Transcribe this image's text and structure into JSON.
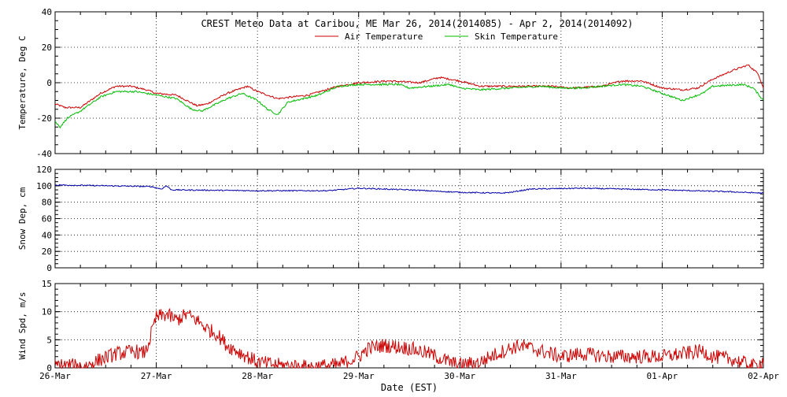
{
  "title": "CREST Meteo Data at Caribou, ME   Mar 26, 2014(2014085) - Apr  2, 2014(2014092)",
  "xlabel": "Date (EST)",
  "x_ticks": [
    "26-Mar",
    "27-Mar",
    "28-Mar",
    "29-Mar",
    "30-Mar",
    "31-Mar",
    "01-Apr",
    "02-Apr"
  ],
  "chart_data": [
    {
      "type": "line",
      "ylabel": "Temperature, Deg C",
      "ylim": [
        -40,
        40
      ],
      "yticks": [
        -40,
        -20,
        0,
        20,
        40
      ],
      "grid": true,
      "legend": "top-center",
      "series": [
        {
          "name": "Air Temperature",
          "color": "#cc0000",
          "points": [
            [
              0,
              -12
            ],
            [
              0.1,
              -14
            ],
            [
              0.25,
              -14
            ],
            [
              0.45,
              -6
            ],
            [
              0.6,
              -2
            ],
            [
              0.75,
              -2
            ],
            [
              0.9,
              -4
            ],
            [
              1.0,
              -6
            ],
            [
              1.2,
              -7
            ],
            [
              1.4,
              -13
            ],
            [
              1.5,
              -12
            ],
            [
              1.7,
              -6
            ],
            [
              1.9,
              -2
            ],
            [
              2.0,
              -5
            ],
            [
              2.2,
              -9
            ],
            [
              2.5,
              -7
            ],
            [
              2.8,
              -2
            ],
            [
              3.0,
              0
            ],
            [
              3.3,
              1
            ],
            [
              3.6,
              0
            ],
            [
              3.8,
              3
            ],
            [
              4.0,
              1
            ],
            [
              4.2,
              -2
            ],
            [
              4.6,
              -2
            ],
            [
              4.9,
              -2
            ],
            [
              5.1,
              -3
            ],
            [
              5.4,
              -2
            ],
            [
              5.6,
              1
            ],
            [
              5.8,
              1
            ],
            [
              6.0,
              -3
            ],
            [
              6.2,
              -4
            ],
            [
              6.35,
              -3
            ],
            [
              6.5,
              2
            ],
            [
              6.7,
              7
            ],
            [
              6.85,
              10
            ],
            [
              6.95,
              5
            ],
            [
              7.0,
              -3
            ]
          ]
        },
        {
          "name": "Skin Temperature",
          "color": "#00bb00",
          "points": [
            [
              0,
              -22
            ],
            [
              0.05,
              -25
            ],
            [
              0.12,
              -20
            ],
            [
              0.25,
              -16
            ],
            [
              0.45,
              -8
            ],
            [
              0.6,
              -5
            ],
            [
              0.8,
              -5
            ],
            [
              1.0,
              -7
            ],
            [
              1.2,
              -9
            ],
            [
              1.35,
              -15
            ],
            [
              1.45,
              -16
            ],
            [
              1.7,
              -9
            ],
            [
              1.85,
              -6
            ],
            [
              2.0,
              -10
            ],
            [
              2.1,
              -15
            ],
            [
              2.2,
              -18
            ],
            [
              2.3,
              -11
            ],
            [
              2.6,
              -7
            ],
            [
              2.8,
              -2
            ],
            [
              3.0,
              -1
            ],
            [
              3.2,
              -1
            ],
            [
              3.4,
              -1
            ],
            [
              3.5,
              -3
            ],
            [
              3.7,
              -2
            ],
            [
              3.9,
              -1
            ],
            [
              4.0,
              -3
            ],
            [
              4.2,
              -4
            ],
            [
              4.5,
              -3
            ],
            [
              4.8,
              -2
            ],
            [
              5.0,
              -3
            ],
            [
              5.2,
              -3
            ],
            [
              5.4,
              -2
            ],
            [
              5.6,
              -1
            ],
            [
              5.8,
              -2
            ],
            [
              6.0,
              -6
            ],
            [
              6.2,
              -10
            ],
            [
              6.4,
              -6
            ],
            [
              6.5,
              -2
            ],
            [
              6.8,
              -1
            ],
            [
              6.9,
              -3
            ],
            [
              7.0,
              -10
            ]
          ]
        }
      ]
    },
    {
      "type": "line",
      "ylabel": "Snow Dep, cm",
      "ylim": [
        0,
        120
      ],
      "yticks": [
        0,
        20,
        40,
        60,
        80,
        100,
        120
      ],
      "grid": true,
      "series": [
        {
          "color": "#0000aa",
          "points": [
            [
              0,
              101
            ],
            [
              0.5,
              100
            ],
            [
              0.95,
              99
            ],
            [
              1.05,
              96
            ],
            [
              1.1,
              100
            ],
            [
              1.15,
              95
            ],
            [
              2.0,
              94
            ],
            [
              2.7,
              94
            ],
            [
              3.0,
              97
            ],
            [
              3.5,
              95
            ],
            [
              4.0,
              92
            ],
            [
              4.4,
              91
            ],
            [
              4.5,
              92
            ],
            [
              4.7,
              96
            ],
            [
              5.2,
              97
            ],
            [
              6.0,
              95
            ],
            [
              6.6,
              93
            ],
            [
              7.0,
              91
            ]
          ]
        }
      ]
    },
    {
      "type": "line",
      "ylabel": "Wind Spd, m/s",
      "ylim": [
        0,
        15
      ],
      "yticks": [
        0,
        5,
        10,
        15
      ],
      "grid": true,
      "series": [
        {
          "color": "#cc0000",
          "points": [
            [
              0,
              0.5
            ],
            [
              0.3,
              0.3
            ],
            [
              0.45,
              1.5
            ],
            [
              0.6,
              2.5
            ],
            [
              0.8,
              3
            ],
            [
              0.85,
              2.5
            ],
            [
              0.9,
              3
            ],
            [
              0.95,
              6
            ],
            [
              1.0,
              9
            ],
            [
              1.1,
              9.5
            ],
            [
              1.2,
              8.5
            ],
            [
              1.3,
              9.5
            ],
            [
              1.4,
              8.5
            ],
            [
              1.5,
              7
            ],
            [
              1.6,
              6
            ],
            [
              1.7,
              4
            ],
            [
              1.8,
              3
            ],
            [
              2.0,
              1
            ],
            [
              2.2,
              0.5
            ],
            [
              2.5,
              0.2
            ],
            [
              2.8,
              0.5
            ],
            [
              3.0,
              2
            ],
            [
              3.1,
              3.5
            ],
            [
              3.25,
              4
            ],
            [
              3.5,
              3.5
            ],
            [
              3.7,
              2.5
            ],
            [
              3.9,
              1
            ],
            [
              4.0,
              0.5
            ],
            [
              4.2,
              1
            ],
            [
              4.3,
              2
            ],
            [
              4.5,
              3.5
            ],
            [
              4.6,
              4
            ],
            [
              4.8,
              3
            ],
            [
              5.0,
              2
            ],
            [
              5.2,
              2.5
            ],
            [
              5.5,
              2
            ],
            [
              5.8,
              2
            ],
            [
              6.0,
              2
            ],
            [
              6.2,
              2.5
            ],
            [
              6.4,
              3
            ],
            [
              6.5,
              2
            ],
            [
              6.7,
              1.5
            ],
            [
              6.9,
              0.3
            ],
            [
              6.95,
              0.5
            ],
            [
              7.0,
              1.5
            ]
          ]
        }
      ]
    }
  ]
}
